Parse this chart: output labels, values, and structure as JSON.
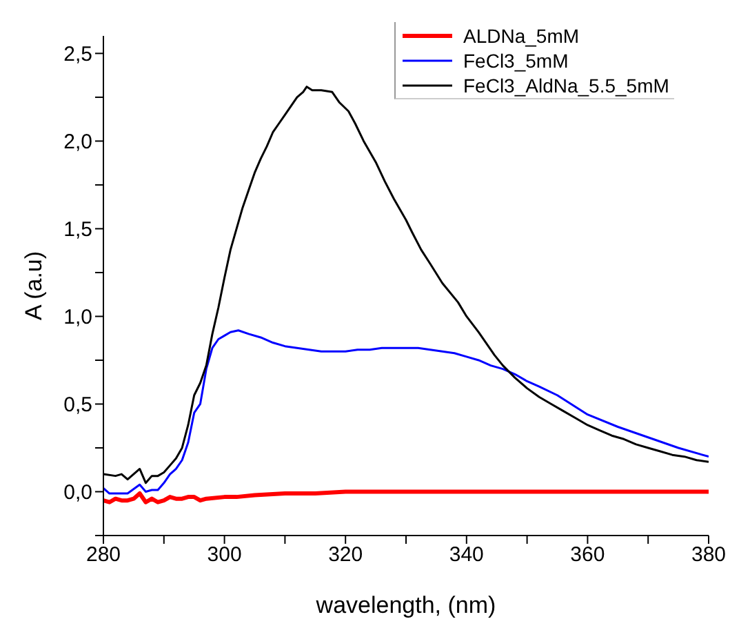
{
  "chart_data": {
    "type": "line",
    "xlabel": "wavelength, (nm)",
    "ylabel": "A (a.u)",
    "xlim": [
      280,
      380
    ],
    "xticks": [
      280,
      {
        "value": 290,
        "label": null
      },
      300,
      {
        "value": 310,
        "label": null
      },
      320,
      {
        "value": 330,
        "label": null
      },
      340,
      {
        "value": 350,
        "label": null
      },
      360,
      {
        "value": 370,
        "label": null
      },
      380
    ],
    "ylim": [
      -0.25,
      2.6
    ],
    "yticks": [
      {
        "value": -0.25,
        "label": null
      },
      {
        "value": 0,
        "label": "0,0"
      },
      {
        "value": 0.25,
        "label": null
      },
      {
        "value": 0.5,
        "label": "0,5"
      },
      {
        "value": 0.75,
        "label": null
      },
      {
        "value": 1,
        "label": "1,0"
      },
      {
        "value": 1.25,
        "label": null
      },
      {
        "value": 1.5,
        "label": "1,5"
      },
      {
        "value": 1.75,
        "label": null
      },
      {
        "value": 2,
        "label": "2,0"
      },
      {
        "value": 2.25,
        "label": null
      },
      {
        "value": 2.5,
        "label": "2,5"
      }
    ],
    "grid": false,
    "legend": "top right",
    "marker": "none",
    "line_style": "solid",
    "series": [
      {
        "name": "ALDNa_5mM",
        "color": "#ff0000",
        "x": [
          280,
          281,
          282,
          283,
          284,
          285,
          286,
          287,
          288,
          289,
          290,
          291,
          292,
          293,
          294,
          295,
          296,
          297,
          300,
          302,
          305,
          310,
          315,
          320,
          330,
          350,
          380
        ],
        "values": [
          -0.05,
          -0.06,
          -0.04,
          -0.05,
          -0.05,
          -0.04,
          -0.01,
          -0.06,
          -0.04,
          -0.06,
          -0.05,
          -0.03,
          -0.04,
          -0.04,
          -0.03,
          -0.03,
          -0.05,
          -0.04,
          -0.03,
          -0.03,
          -0.02,
          -0.01,
          -0.01,
          0,
          0,
          0,
          0
        ]
      },
      {
        "name": "FeCl3_5mM",
        "color": "#0000ff",
        "x": [
          280,
          281,
          283,
          284,
          286,
          287,
          288,
          289,
          290,
          291,
          292,
          293,
          294,
          295,
          296,
          297,
          298,
          299,
          300,
          301,
          302.3,
          304,
          306,
          308,
          310,
          312,
          314,
          316,
          318,
          320,
          322,
          324,
          326,
          328,
          330,
          332,
          334,
          336,
          338,
          340,
          342,
          344,
          346,
          348,
          350,
          352,
          355,
          360,
          365,
          370,
          375,
          380
        ],
        "values": [
          0.02,
          -0.01,
          -0.01,
          -0.01,
          0.04,
          0,
          0.01,
          0.01,
          0.05,
          0.1,
          0.13,
          0.18,
          0.28,
          0.45,
          0.5,
          0.7,
          0.82,
          0.87,
          0.89,
          0.91,
          0.92,
          0.9,
          0.88,
          0.85,
          0.83,
          0.82,
          0.81,
          0.8,
          0.8,
          0.8,
          0.81,
          0.81,
          0.82,
          0.82,
          0.82,
          0.82,
          0.81,
          0.8,
          0.79,
          0.77,
          0.75,
          0.72,
          0.7,
          0.67,
          0.63,
          0.6,
          0.55,
          0.44,
          0.37,
          0.31,
          0.25,
          0.2
        ]
      },
      {
        "name": "FeCl3_AldNa_5.5_5mM",
        "color": "#000000",
        "x": [
          280,
          282,
          283,
          284,
          286,
          287,
          288,
          289,
          290,
          291,
          292,
          293,
          294,
          295,
          296,
          297,
          298,
          299,
          300,
          301,
          302,
          303,
          304,
          305,
          306,
          307,
          308,
          309,
          310,
          311,
          312,
          313,
          313.6,
          314.5,
          316,
          317.8,
          319,
          320.5,
          321.6,
          323,
          325,
          326.5,
          328,
          330,
          331,
          332.5,
          334,
          336,
          338.6,
          340,
          342,
          344.6,
          346,
          348,
          350,
          352,
          354,
          356,
          358,
          360,
          362,
          364,
          366,
          368,
          370,
          372,
          374,
          376,
          378,
          380
        ],
        "values": [
          0.1,
          0.09,
          0.1,
          0.07,
          0.13,
          0.05,
          0.09,
          0.09,
          0.11,
          0.15,
          0.19,
          0.25,
          0.38,
          0.55,
          0.62,
          0.72,
          0.9,
          1.05,
          1.22,
          1.38,
          1.5,
          1.62,
          1.72,
          1.82,
          1.9,
          1.97,
          2.05,
          2.1,
          2.15,
          2.2,
          2.25,
          2.28,
          2.31,
          2.29,
          2.29,
          2.28,
          2.22,
          2.17,
          2.1,
          2,
          1.88,
          1.77,
          1.67,
          1.55,
          1.48,
          1.38,
          1.3,
          1.19,
          1.08,
          1,
          0.91,
          0.78,
          0.72,
          0.65,
          0.59,
          0.54,
          0.5,
          0.46,
          0.42,
          0.38,
          0.35,
          0.32,
          0.3,
          0.27,
          0.25,
          0.23,
          0.21,
          0.2,
          0.18,
          0.17
        ]
      }
    ]
  }
}
